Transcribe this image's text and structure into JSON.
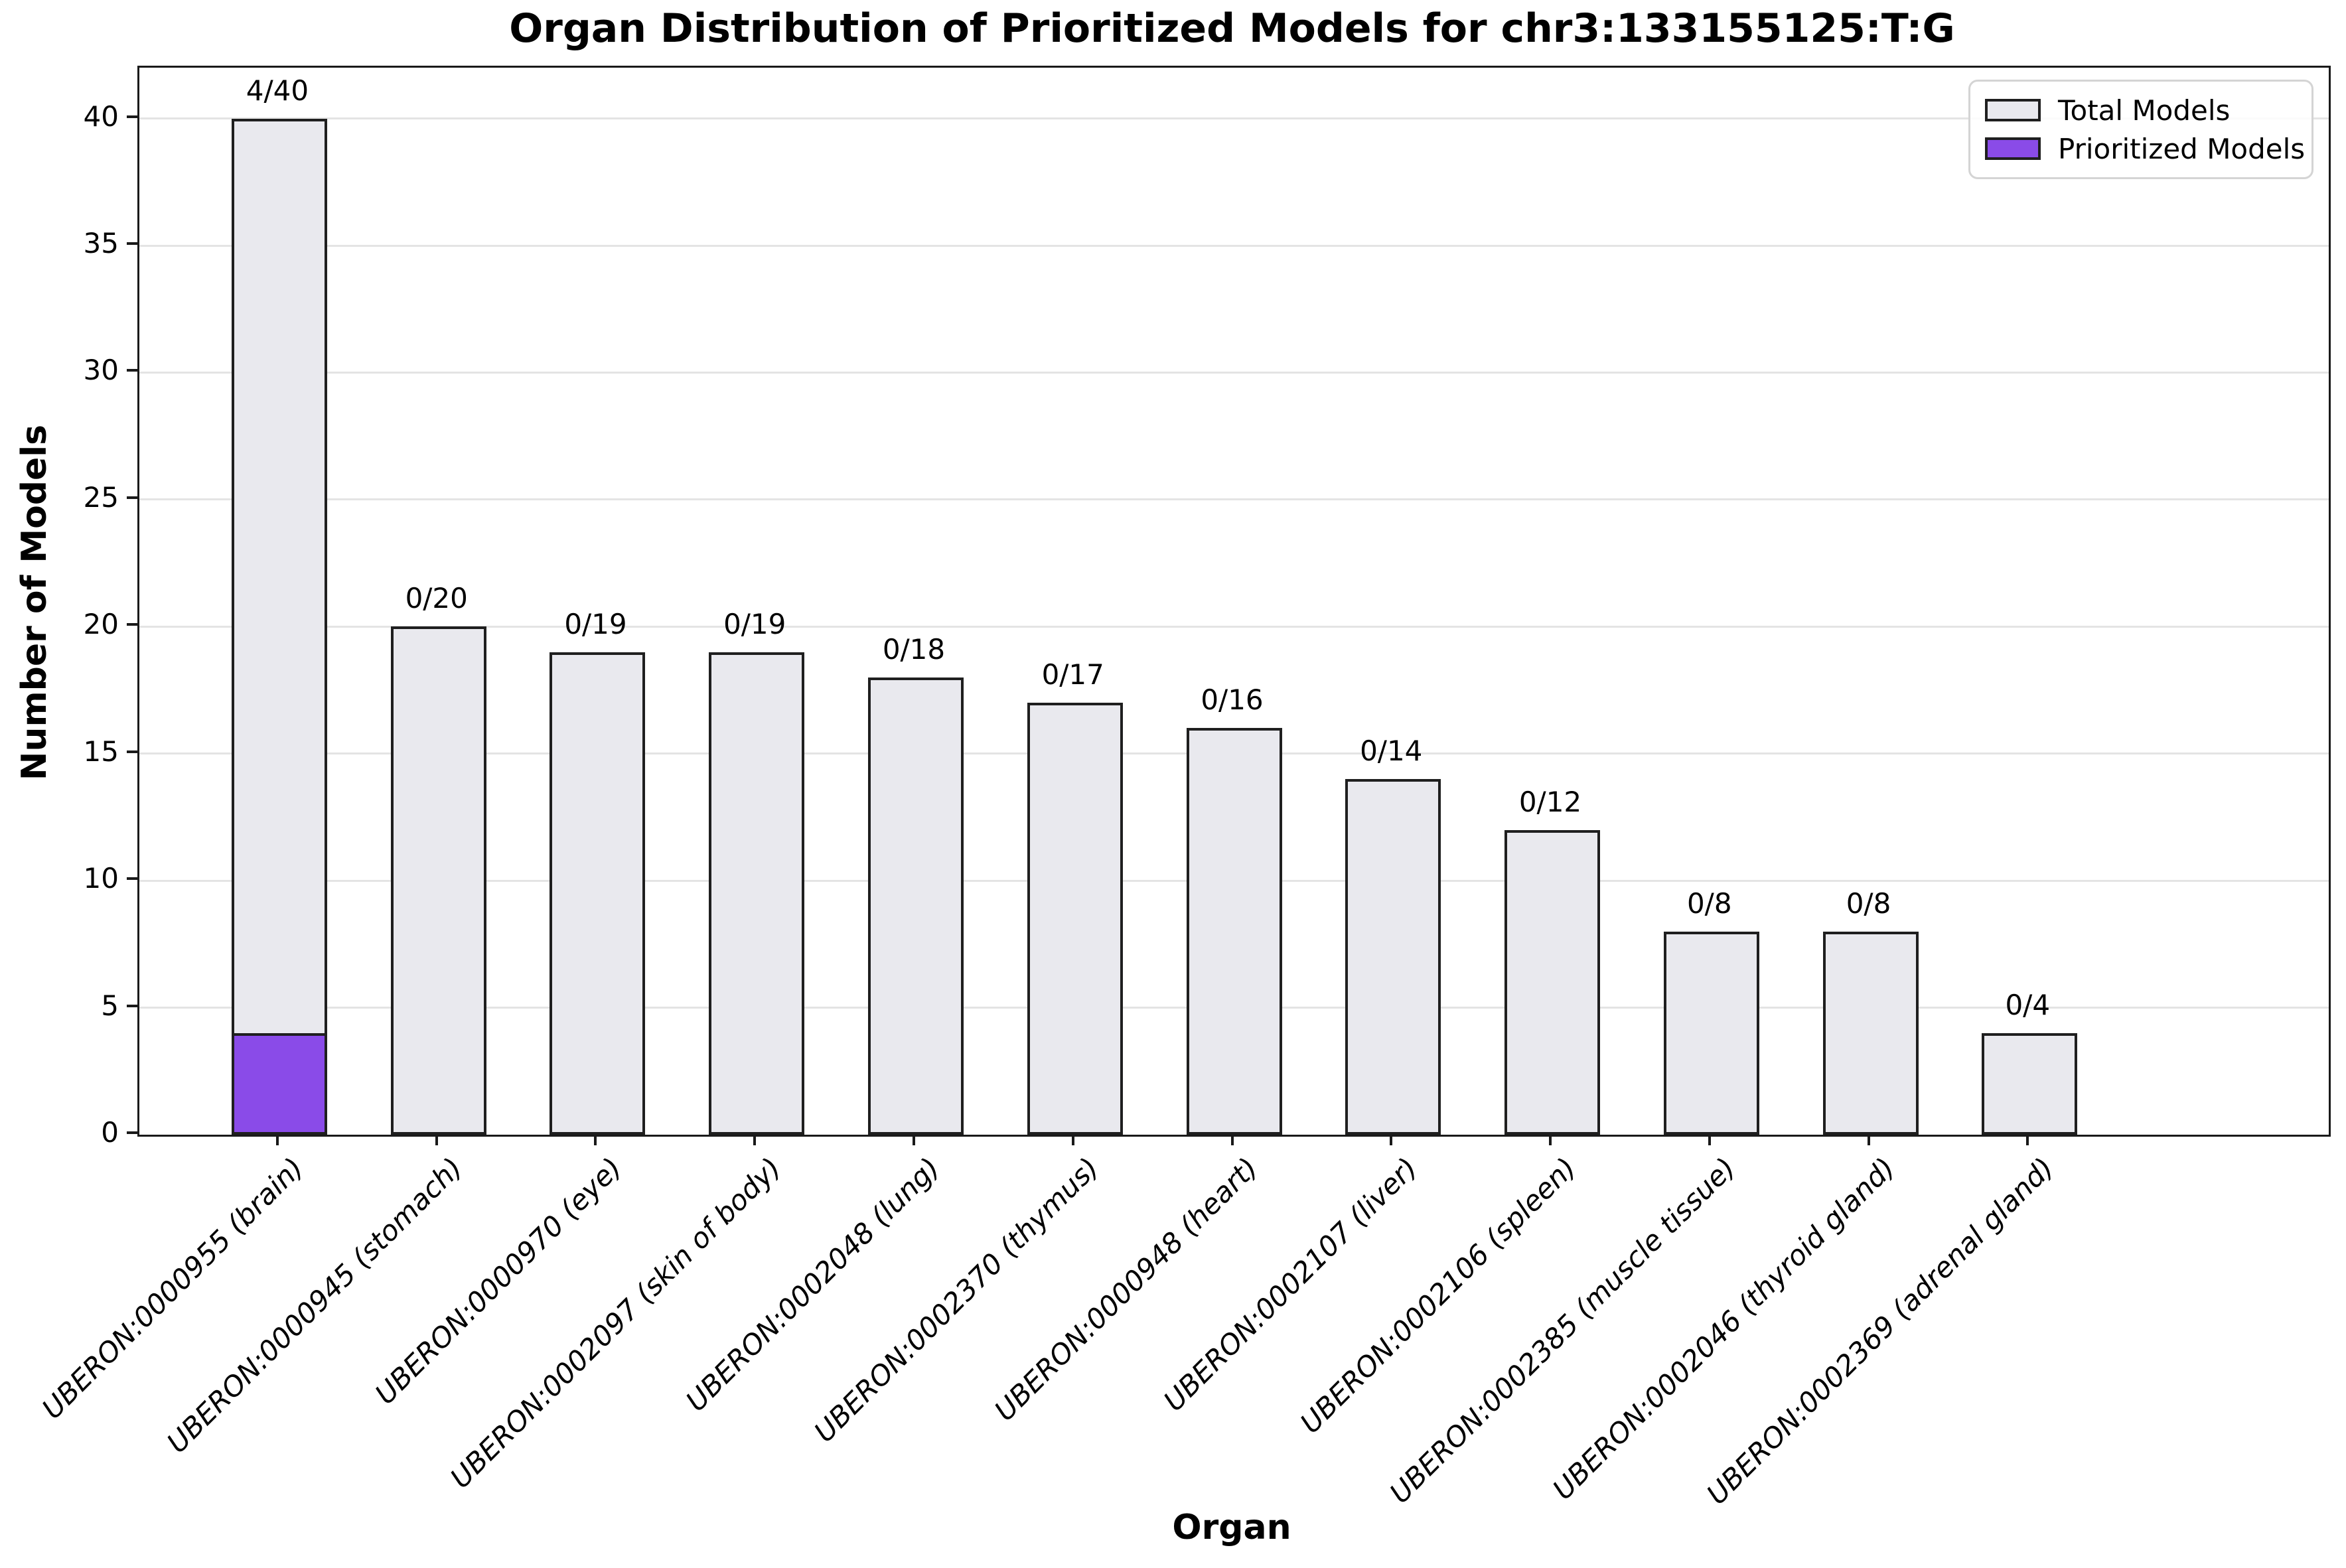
{
  "title": "Organ Distribution of Prioritized Models for chr3:133155125:T:G",
  "chart_data": {
    "type": "bar",
    "title": "Organ Distribution of Prioritized Models for chr3:133155125:T:G",
    "xlabel": "Organ",
    "ylabel": "Number of Models",
    "ylim": [
      0,
      42
    ],
    "yticks": [
      0,
      5,
      10,
      15,
      20,
      25,
      30,
      35,
      40
    ],
    "grid": true,
    "legend_position": "upper right",
    "categories": [
      "UBERON:0000955 (brain)",
      "UBERON:0000945 (stomach)",
      "UBERON:0000970 (eye)",
      "UBERON:0002097 (skin of body)",
      "UBERON:0002048 (lung)",
      "UBERON:0002370 (thymus)",
      "UBERON:0000948 (heart)",
      "UBERON:0002107 (liver)",
      "UBERON:0002106 (spleen)",
      "UBERON:0002385 (muscle tissue)",
      "UBERON:0002046 (thyroid gland)",
      "UBERON:0002369 (adrenal gland)"
    ],
    "series": [
      {
        "name": "Total Models",
        "color": "#e9e9ee",
        "values": [
          40,
          20,
          19,
          19,
          18,
          17,
          16,
          14,
          12,
          8,
          8,
          4
        ]
      },
      {
        "name": "Prioritized Models",
        "color": "#8a4be8",
        "values": [
          4,
          0,
          0,
          0,
          0,
          0,
          0,
          0,
          0,
          0,
          0,
          0
        ]
      }
    ],
    "bar_labels": [
      "4/40",
      "0/20",
      "0/19",
      "0/19",
      "0/18",
      "0/17",
      "0/16",
      "0/14",
      "0/12",
      "0/8",
      "0/8",
      "0/4"
    ]
  },
  "colors": {
    "total_fill": "#e9e9ee",
    "prioritized_fill": "#8a4be8",
    "bar_edge": "#1f1f1f",
    "grid": "#e4e4e4",
    "axis": "#1a1a1a",
    "legend_border": "#d4d4d4"
  }
}
